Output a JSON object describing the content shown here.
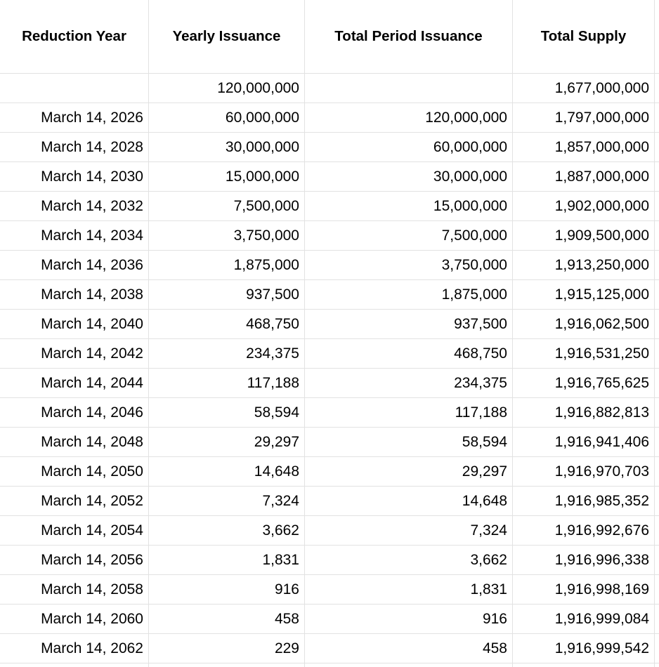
{
  "table": {
    "header": [
      "Reduction Year",
      "Yearly Issuance",
      "Total Period Issuance",
      "Total Supply"
    ],
    "rows": [
      [
        null,
        "120,000,000",
        null,
        "1,677,000,000"
      ],
      [
        "March 14, 2026",
        "60,000,000",
        "120,000,000",
        "1,797,000,000"
      ],
      [
        "March 14, 2028",
        "30,000,000",
        "60,000,000",
        "1,857,000,000"
      ],
      [
        "March 14, 2030",
        "15,000,000",
        "30,000,000",
        "1,887,000,000"
      ],
      [
        "March 14, 2032",
        "7,500,000",
        "15,000,000",
        "1,902,000,000"
      ],
      [
        "March 14, 2034",
        "3,750,000",
        "7,500,000",
        "1,909,500,000"
      ],
      [
        "March 14, 2036",
        "1,875,000",
        "3,750,000",
        "1,913,250,000"
      ],
      [
        "March 14, 2038",
        "937,500",
        "1,875,000",
        "1,915,125,000"
      ],
      [
        "March 14, 2040",
        "468,750",
        "937,500",
        "1,916,062,500"
      ],
      [
        "March 14, 2042",
        "234,375",
        "468,750",
        "1,916,531,250"
      ],
      [
        "March 14, 2044",
        "117,188",
        "234,375",
        "1,916,765,625"
      ],
      [
        "March 14, 2046",
        "58,594",
        "117,188",
        "1,916,882,813"
      ],
      [
        "March 14, 2048",
        "29,297",
        "58,594",
        "1,916,941,406"
      ],
      [
        "March 14, 2050",
        "14,648",
        "29,297",
        "1,916,970,703"
      ],
      [
        "March 14, 2052",
        "7,324",
        "14,648",
        "1,916,985,352"
      ],
      [
        "March 14, 2054",
        "3,662",
        "7,324",
        "1,916,992,676"
      ],
      [
        "March 14, 2056",
        "1,831",
        "3,662",
        "1,916,996,338"
      ],
      [
        "March 14, 2058",
        "916",
        "1,831",
        "1,916,998,169"
      ],
      [
        "March 14, 2060",
        "458",
        "916",
        "1,916,999,084"
      ],
      [
        "March 14, 2062",
        "229",
        "458",
        "1,916,999,542"
      ]
    ]
  }
}
